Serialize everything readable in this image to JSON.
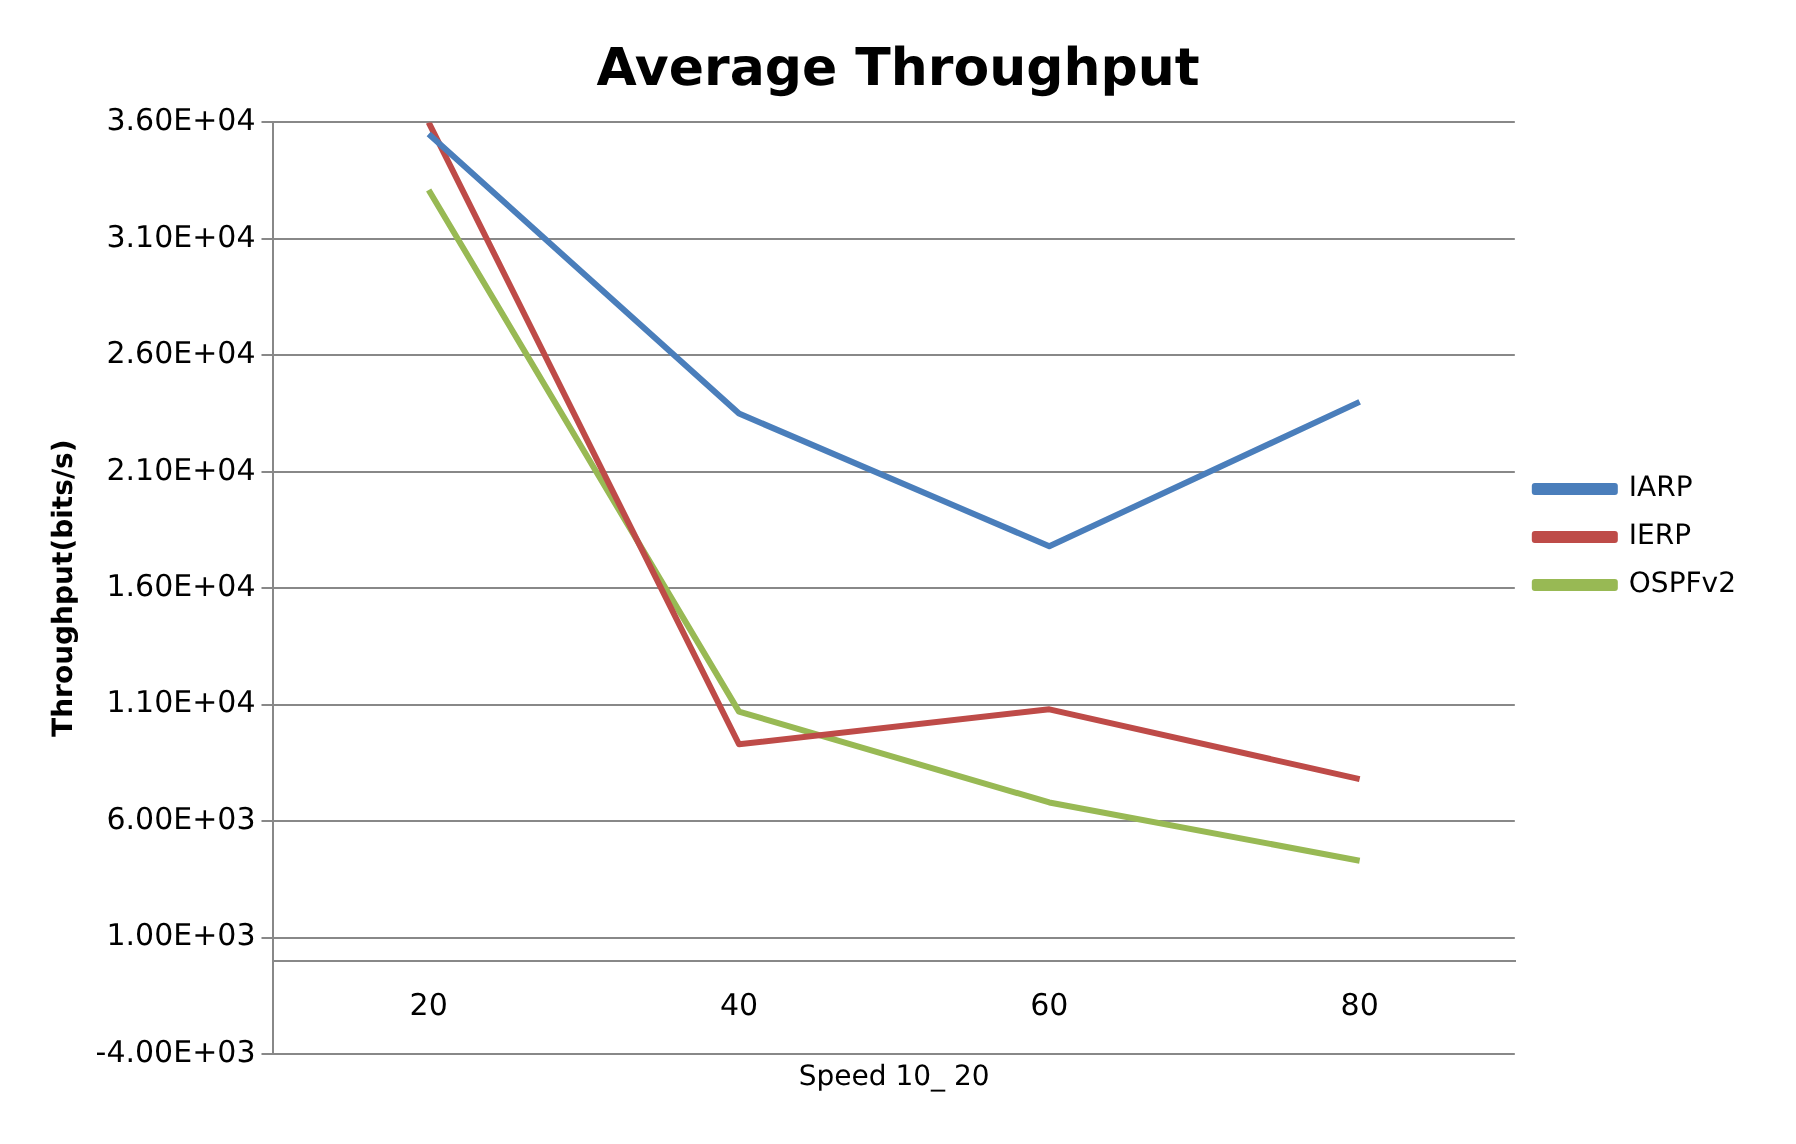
{
  "chart_data": {
    "type": "line",
    "title": "Average Throughput",
    "xlabel": "Speed 10_ 20",
    "ylabel": "Throughput(bits/s)",
    "categories": [
      "20",
      "40",
      "60",
      "80"
    ],
    "series": [
      {
        "name": "IARP",
        "color": "#4a7ebb",
        "values": [
          35500,
          23500,
          17800,
          24000
        ]
      },
      {
        "name": "IERP",
        "color": "#be4b48",
        "values": [
          36000,
          9300,
          10800,
          7800
        ]
      },
      {
        "name": "OSPFv2",
        "color": "#98b954",
        "values": [
          33100,
          10700,
          6800,
          4300
        ]
      }
    ],
    "ylim": [
      -4000,
      36000
    ],
    "yticks": [
      {
        "value": -4000,
        "label": "-4.00E+03"
      },
      {
        "value": 1000,
        "label": "1.00E+03"
      },
      {
        "value": 6000,
        "label": "6.00E+03"
      },
      {
        "value": 11000,
        "label": "1.10E+04"
      },
      {
        "value": 16000,
        "label": "1.60E+04"
      },
      {
        "value": 21000,
        "label": "2.10E+04"
      },
      {
        "value": 26000,
        "label": "2.60E+04"
      },
      {
        "value": 31000,
        "label": "3.10E+04"
      },
      {
        "value": 36000,
        "label": "3.60E+04"
      }
    ],
    "grid": "y",
    "legend": "right",
    "marker": "none",
    "line_style": "solid"
  }
}
